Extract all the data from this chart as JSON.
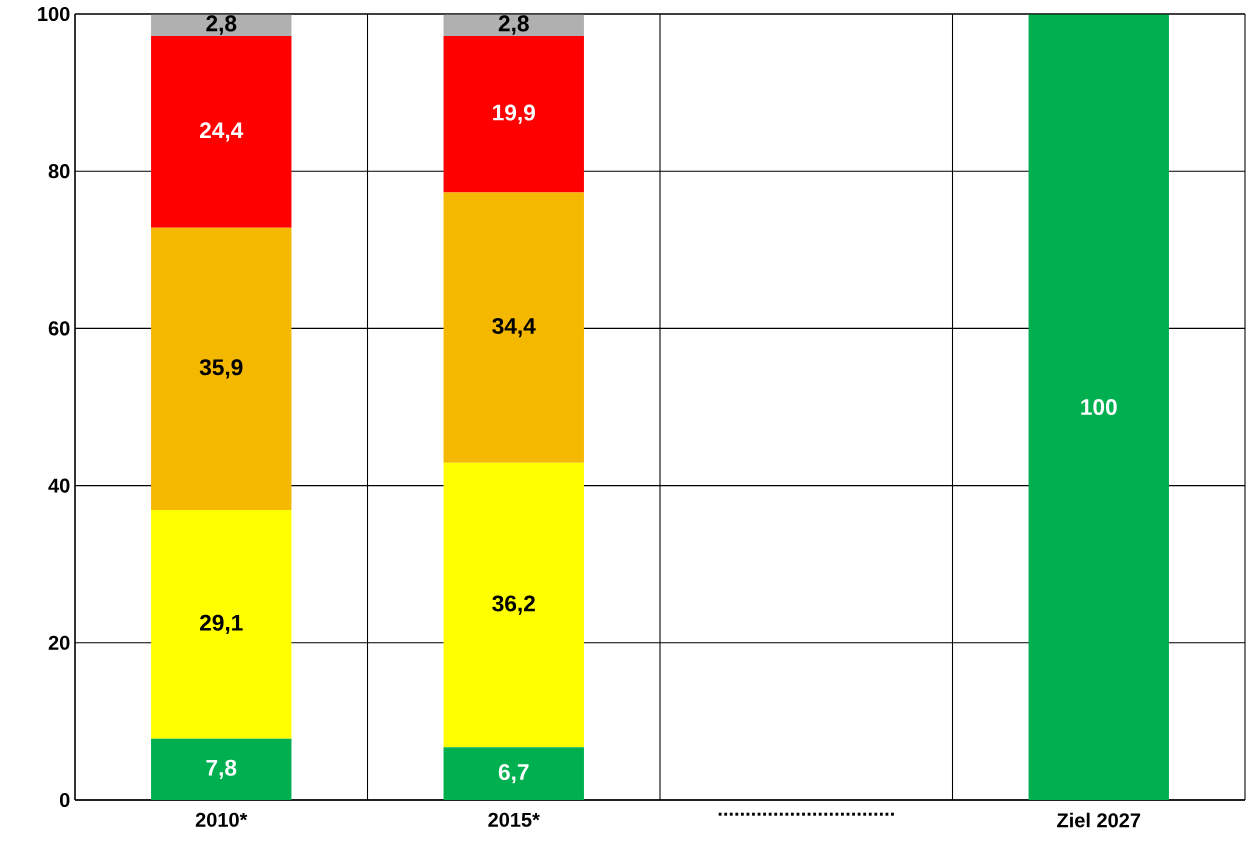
{
  "chart_data": {
    "type": "bar",
    "stacked": true,
    "categories": [
      "2010*",
      "2015*",
      "................................",
      "Ziel 2027"
    ],
    "series": [
      {
        "color": "#00b050",
        "values": [
          7.8,
          6.7,
          null,
          100
        ],
        "value_labels": [
          "7,8",
          "6,7",
          null,
          "100"
        ]
      },
      {
        "color": "#ffff00",
        "values": [
          29.1,
          36.2,
          null,
          null
        ],
        "value_labels": [
          "29,1",
          "36,2",
          null,
          null
        ]
      },
      {
        "color": "#f5b800",
        "values": [
          35.9,
          34.4,
          null,
          null
        ],
        "value_labels": [
          "35,9",
          "34,4",
          null,
          null
        ]
      },
      {
        "color": "#ff0000",
        "values": [
          24.4,
          19.9,
          null,
          null
        ],
        "value_labels": [
          "24,4",
          "19,9",
          null,
          null
        ]
      },
      {
        "color": "#b0b0b0",
        "values": [
          2.8,
          2.8,
          null,
          null
        ],
        "value_labels": [
          "2,8",
          "2,8",
          null,
          null
        ]
      }
    ],
    "ylim": [
      0,
      100
    ],
    "yticks": [
      0,
      20,
      40,
      60,
      80,
      100
    ],
    "grid": true
  }
}
